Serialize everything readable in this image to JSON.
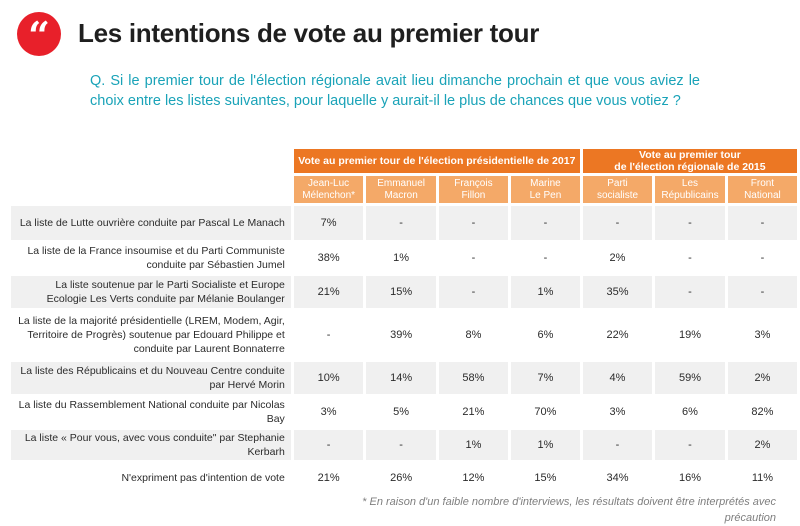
{
  "logo_glyph": "“",
  "title": "Les intentions de vote au premier tour",
  "question": "Q. Si le premier tour de l'élection régionale avait lieu dimanche prochain et que vous aviez le choix entre les listes suivantes, pour laquelle y aurait-il le plus de chances que vous votiez ?",
  "groups": [
    "Vote au premier tour de l'élection présidentielle de 2017",
    "Vote au premier tour\nde l'élection régionale de 2015"
  ],
  "columns": [
    "Jean-Luc\nMélenchon*",
    "Emmanuel\nMacron",
    "François\nFillon",
    "Marine\nLe Pen",
    "Parti\nsocialiste",
    "Les\nRépublicains",
    "Front\nNational"
  ],
  "rows": [
    {
      "label": "La liste de Lutte ouvrière conduite par Pascal Le Manach",
      "values": [
        "7%",
        "-",
        "-",
        "-",
        "-",
        "-",
        "-"
      ]
    },
    {
      "label": "La liste de la France insoumise et du Parti Communiste conduite par Sébastien Jumel",
      "values": [
        "38%",
        "1%",
        "-",
        "-",
        "2%",
        "-",
        "-"
      ]
    },
    {
      "label": "La liste soutenue par le Parti Socialiste et Europe Ecologie Les Verts conduite par Mélanie Boulanger",
      "values": [
        "21%",
        "15%",
        "-",
        "1%",
        "35%",
        "-",
        "-"
      ]
    },
    {
      "label": "La liste de la majorité présidentielle (LREM, Modem, Agir, Territoire de Progrès) soutenue par Edouard Philippe et conduite par Laurent Bonnaterre",
      "values": [
        "-",
        "39%",
        "8%",
        "6%",
        "22%",
        "19%",
        "3%"
      ]
    },
    {
      "label": "La liste des Républicains et du Nouveau Centre conduite par Hervé Morin",
      "values": [
        "10%",
        "14%",
        "58%",
        "7%",
        "4%",
        "59%",
        "2%"
      ]
    },
    {
      "label": "La liste du Rassemblement National conduite par Nicolas Bay",
      "values": [
        "3%",
        "5%",
        "21%",
        "70%",
        "3%",
        "6%",
        "82%"
      ]
    },
    {
      "label": "La liste « Pour vous, avec vous conduite\" par Stephanie Kerbarh",
      "values": [
        "-",
        "-",
        "1%",
        "1%",
        "-",
        "-",
        "2%"
      ]
    },
    {
      "label": "N'expriment pas d'intention de vote",
      "values": [
        "21%",
        "26%",
        "12%",
        "15%",
        "34%",
        "16%",
        "11%"
      ]
    }
  ],
  "footnote": "* En raison d'un faible nombre d'interviews, les résultats doivent être interprétés avec précaution"
}
